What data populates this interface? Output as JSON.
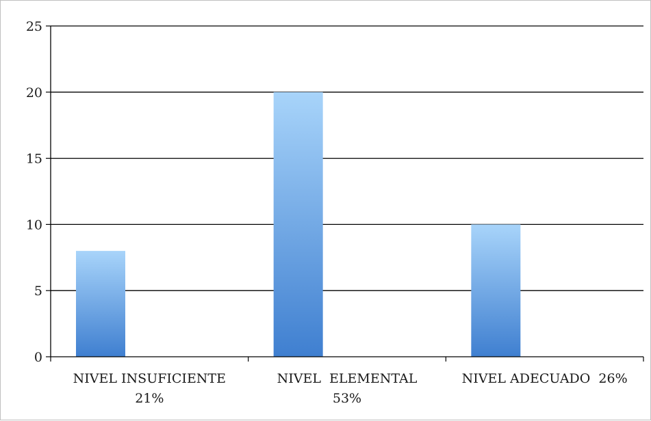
{
  "chart_data": {
    "type": "bar",
    "categories": [
      [
        "NIVEL INSUFICIENTE",
        "21%"
      ],
      [
        "NIVEL  ELEMENTAL",
        "53%"
      ],
      [
        "NIVEL ADECUADO  26%"
      ]
    ],
    "values": [
      8,
      20,
      10
    ],
    "ylim": [
      0,
      25
    ],
    "yticks": [
      0,
      5,
      10,
      15,
      20,
      25
    ],
    "grid": true,
    "legend": false,
    "colors": {
      "bar_top": "#a8d4fa",
      "bar_bottom": "#3f7fd0",
      "grid": "#000000"
    }
  }
}
